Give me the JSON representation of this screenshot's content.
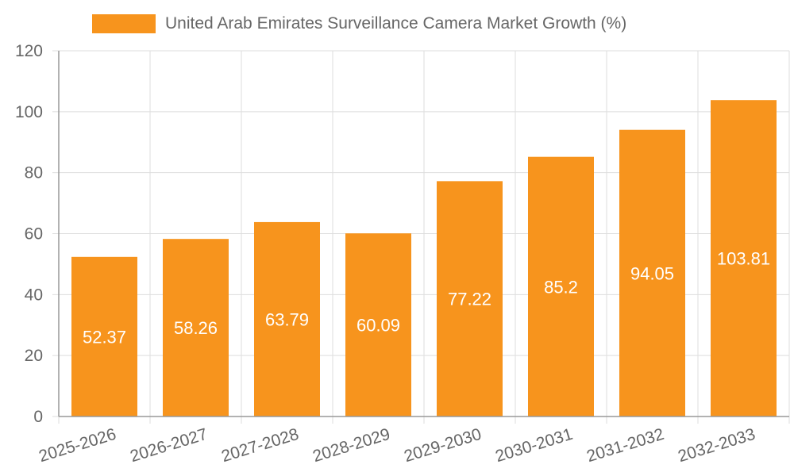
{
  "colors": {
    "bar": "#f7941d",
    "grid": "#dddddd",
    "axis": "#999999",
    "text": "#666666",
    "label": "#ffffff",
    "background": "#ffffff"
  },
  "chart_data": {
    "type": "bar",
    "title": "",
    "xlabel": "",
    "ylabel": "",
    "legend": {
      "position": "top-center"
    },
    "categories": [
      "2025-2026",
      "2026-2027",
      "2027-2028",
      "2028-2029",
      "2029-2030",
      "2030-2031",
      "2031-2032",
      "2032-2033"
    ],
    "series": [
      {
        "name": "United Arab Emirates Surveillance Camera Market Growth (%)",
        "values": [
          52.37,
          58.26,
          63.79,
          60.09,
          77.22,
          85.2,
          94.05,
          103.81
        ],
        "value_labels": [
          "52.37",
          "58.26",
          "63.79",
          "60.09",
          "77.22",
          "85.2",
          "94.05",
          "103.81"
        ]
      }
    ],
    "ylim": [
      0,
      120
    ],
    "yticks": [
      0,
      20,
      40,
      60,
      80,
      100,
      120
    ],
    "ytick_labels": [
      "0",
      "20",
      "40",
      "60",
      "80",
      "100",
      "120"
    ],
    "grid": true
  }
}
